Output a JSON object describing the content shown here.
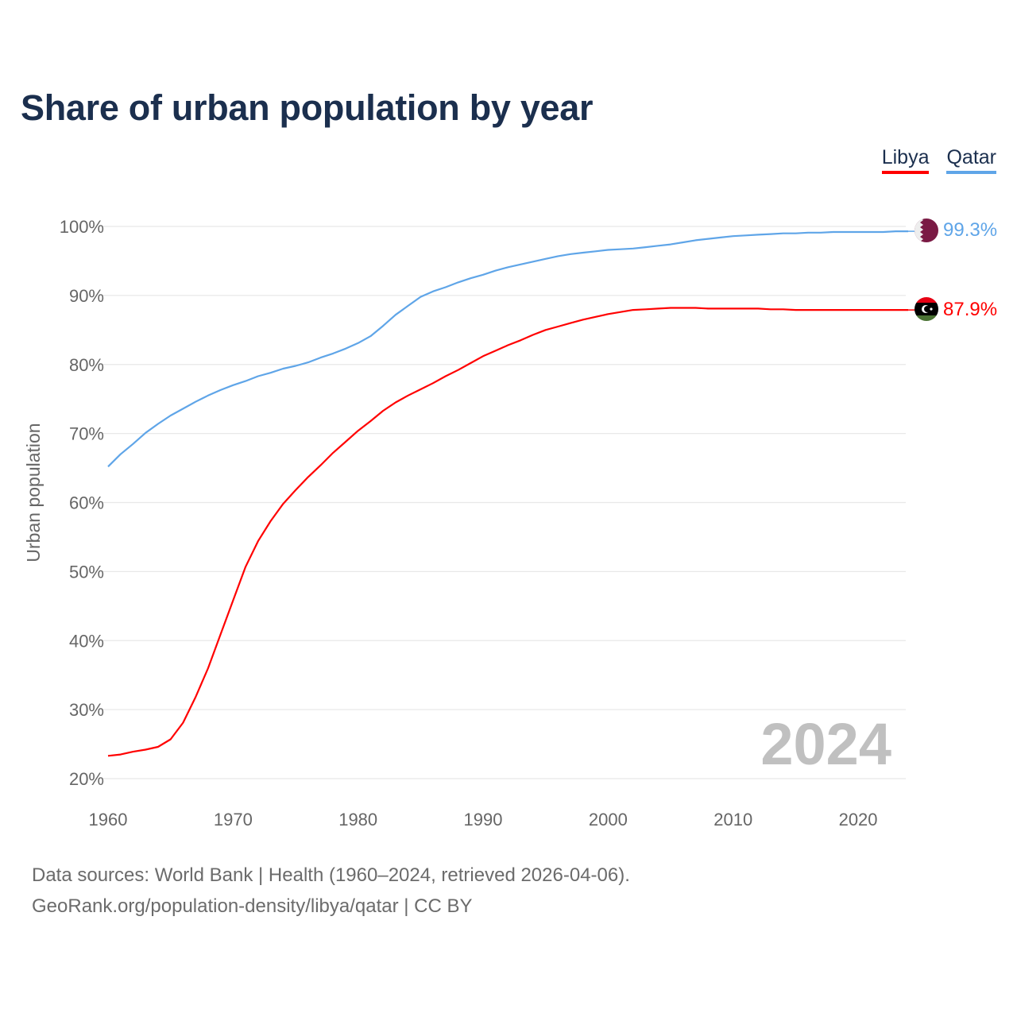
{
  "chart_data": {
    "type": "line",
    "title": "Share of urban population by year",
    "xlabel": "",
    "ylabel": "Urban population",
    "xlim": [
      1960,
      2024
    ],
    "ylim": [
      20,
      100
    ],
    "grid": true,
    "legend_placement": "top-right",
    "x_ticks": [
      "1960",
      "1970",
      "1980",
      "1990",
      "2000",
      "2010",
      "2020"
    ],
    "y_ticks": [
      "20%",
      "30%",
      "40%",
      "50%",
      "60%",
      "70%",
      "80%",
      "90%",
      "100%"
    ],
    "year_annotation": "2024",
    "x": [
      1960,
      1961,
      1962,
      1963,
      1964,
      1965,
      1966,
      1967,
      1968,
      1969,
      1970,
      1971,
      1972,
      1973,
      1974,
      1975,
      1976,
      1977,
      1978,
      1979,
      1980,
      1981,
      1982,
      1983,
      1984,
      1985,
      1986,
      1987,
      1988,
      1989,
      1990,
      1991,
      1992,
      1993,
      1994,
      1995,
      1996,
      1997,
      1998,
      1999,
      2000,
      2001,
      2002,
      2003,
      2004,
      2005,
      2006,
      2007,
      2008,
      2009,
      2010,
      2011,
      2012,
      2013,
      2014,
      2015,
      2016,
      2017,
      2018,
      2019,
      2020,
      2021,
      2022,
      2023,
      2024
    ],
    "series": [
      {
        "name": "Libya",
        "color": "#ff0000",
        "end_label": "87.9%",
        "flag": "libya-flag",
        "values": [
          23.3,
          23.5,
          23.9,
          24.2,
          24.6,
          25.7,
          28.1,
          31.8,
          36.0,
          40.9,
          45.8,
          50.7,
          54.4,
          57.3,
          59.8,
          61.8,
          63.7,
          65.4,
          67.2,
          68.8,
          70.4,
          71.8,
          73.3,
          74.5,
          75.5,
          76.4,
          77.3,
          78.3,
          79.2,
          80.2,
          81.2,
          82.0,
          82.8,
          83.5,
          84.3,
          85.0,
          85.5,
          86.0,
          86.5,
          86.9,
          87.3,
          87.6,
          87.9,
          88.0,
          88.1,
          88.2,
          88.2,
          88.2,
          88.1,
          88.1,
          88.1,
          88.1,
          88.1,
          88.0,
          88.0,
          87.9,
          87.9,
          87.9,
          87.9,
          87.9,
          87.9,
          87.9,
          87.9,
          87.9,
          87.9
        ]
      },
      {
        "name": "Qatar",
        "color": "#5fa5e8",
        "end_label": "99.3%",
        "flag": "qatar-flag",
        "values": [
          65.2,
          67.0,
          68.5,
          70.1,
          71.4,
          72.6,
          73.6,
          74.6,
          75.5,
          76.3,
          77.0,
          77.6,
          78.3,
          78.8,
          79.4,
          79.8,
          80.3,
          81.0,
          81.6,
          82.3,
          83.1,
          84.1,
          85.6,
          87.2,
          88.5,
          89.8,
          90.6,
          91.2,
          91.9,
          92.5,
          93.0,
          93.6,
          94.1,
          94.5,
          94.9,
          95.3,
          95.7,
          96.0,
          96.2,
          96.4,
          96.6,
          96.7,
          96.8,
          97.0,
          97.2,
          97.4,
          97.7,
          98.0,
          98.2,
          98.4,
          98.6,
          98.7,
          98.8,
          98.9,
          99.0,
          99.0,
          99.1,
          99.1,
          99.2,
          99.2,
          99.2,
          99.2,
          99.2,
          99.3,
          99.3
        ]
      }
    ]
  },
  "footer": {
    "sources": "Data sources: World Bank | Health (1960–2024, retrieved 2026-04-06).",
    "credit": "GeoRank.org/population-density/libya/qatar | CC BY"
  }
}
